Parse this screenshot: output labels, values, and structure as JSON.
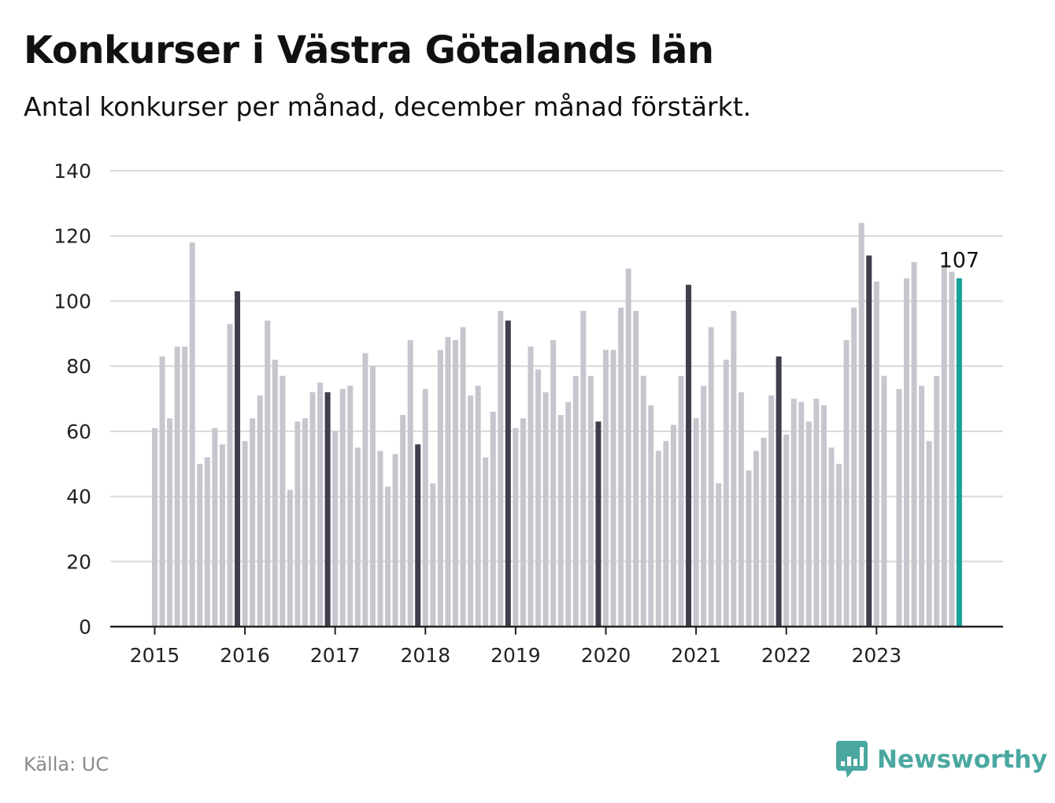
{
  "header": {
    "title": "Konkurser i Västra Götalands län",
    "subtitle": "Antal konkurser per månad, december månad förstärkt."
  },
  "footer": {
    "source": "Källa: UC",
    "brand_name": "Newsworthy",
    "brand_icon": "bar-chart-speech-bubble-icon"
  },
  "colors": {
    "bar": "#c6c6cf",
    "december": "#3f3f4c",
    "latest": "#18a097",
    "grid": "#d9d9d9",
    "axis": "#222222",
    "brand": "#4aa8a0"
  },
  "chart_data": {
    "type": "bar",
    "title": "Konkurser i Västra Götalands län",
    "subtitle": "Antal konkurser per månad, december månad förstärkt.",
    "ylim": [
      0,
      140
    ],
    "y_ticks": [
      0,
      20,
      40,
      60,
      80,
      100,
      120,
      140
    ],
    "x_tick_labels": [
      "2015",
      "2016",
      "2017",
      "2018",
      "2019",
      "2020",
      "2021",
      "2022",
      "2023"
    ],
    "start": "2015-01",
    "end": "2023-12",
    "highlight": "december",
    "grid": true,
    "annotation": {
      "month": "2023-12",
      "label": "107"
    },
    "values": [
      61,
      83,
      64,
      86,
      86,
      118,
      50,
      52,
      61,
      56,
      93,
      103,
      57,
      64,
      71,
      94,
      82,
      77,
      42,
      63,
      64,
      72,
      75,
      72,
      60,
      73,
      74,
      55,
      84,
      80,
      54,
      43,
      53,
      65,
      88,
      56,
      73,
      44,
      85,
      89,
      88,
      92,
      71,
      74,
      52,
      66,
      97,
      94,
      61,
      64,
      86,
      79,
      72,
      88,
      65,
      69,
      77,
      97,
      77,
      63,
      85,
      85,
      98,
      110,
      97,
      77,
      68,
      54,
      57,
      62,
      77,
      105,
      64,
      74,
      92,
      44,
      82,
      97,
      72,
      48,
      54,
      58,
      71,
      83,
      59,
      70,
      69,
      63,
      70,
      68,
      55,
      50,
      88,
      98,
      124,
      114,
      106,
      77,
      0,
      73,
      107,
      112,
      74,
      57,
      77,
      111,
      109,
      107
    ]
  }
}
